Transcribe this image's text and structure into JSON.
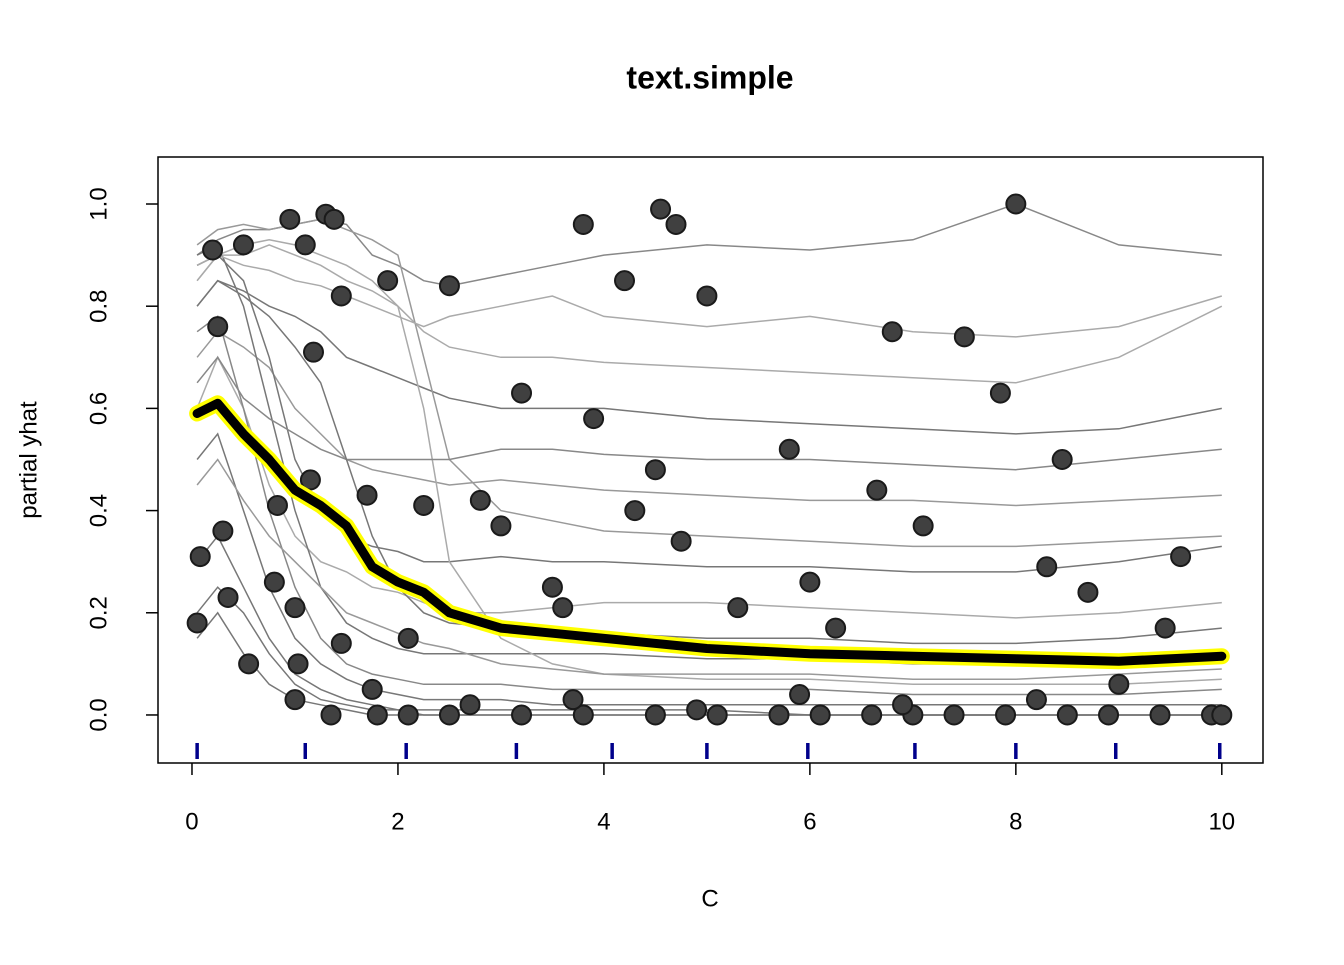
{
  "chart_data": {
    "type": "ice",
    "title": "text.simple",
    "x_label": "C",
    "y_label": "partial yhat",
    "xlim": [
      -0.33,
      10.4
    ],
    "ylim": [
      -0.094,
      1.092
    ],
    "xticks": [
      0,
      2,
      4,
      6,
      8,
      10
    ],
    "yticks": [
      {
        "value": 0,
        "label": "0.0"
      },
      0.2,
      0.4,
      0.6,
      0.8,
      {
        "value": 1,
        "label": "1.0"
      }
    ],
    "x": [
      0.05,
      0.25,
      0.5,
      0.75,
      1,
      1.25,
      1.5,
      1.75,
      2,
      2.25,
      2.5,
      3,
      3.5,
      4,
      5,
      6,
      7,
      8,
      9,
      10
    ],
    "series": [
      {
        "color": "#888888",
        "values": [
          0.9,
          0.93,
          0.95,
          0.95,
          0.96,
          0.97,
          0.96,
          0.9,
          0.88,
          0.85,
          0.84,
          0.86,
          0.88,
          0.9,
          0.92,
          0.91,
          0.93,
          1.0,
          0.92,
          0.9
        ]
      },
      {
        "color": "#aaaaaa",
        "values": [
          0.85,
          0.9,
          0.92,
          0.93,
          0.92,
          0.9,
          0.88,
          0.85,
          0.8,
          0.75,
          0.72,
          0.7,
          0.7,
          0.69,
          0.68,
          0.67,
          0.66,
          0.65,
          0.7,
          0.8
        ]
      },
      {
        "color": "#777777",
        "values": [
          0.8,
          0.85,
          0.83,
          0.8,
          0.78,
          0.75,
          0.7,
          0.68,
          0.66,
          0.64,
          0.62,
          0.6,
          0.6,
          0.6,
          0.58,
          0.57,
          0.56,
          0.55,
          0.56,
          0.6
        ]
      },
      {
        "color": "#999999",
        "values": [
          0.7,
          0.75,
          0.72,
          0.68,
          0.6,
          0.55,
          0.5,
          0.48,
          0.47,
          0.46,
          0.45,
          0.46,
          0.45,
          0.44,
          0.43,
          0.42,
          0.42,
          0.41,
          0.42,
          0.43
        ]
      },
      {
        "color": "#777777",
        "values": [
          0.88,
          0.9,
          0.85,
          0.7,
          0.5,
          0.4,
          0.35,
          0.33,
          0.32,
          0.3,
          0.3,
          0.31,
          0.3,
          0.3,
          0.29,
          0.29,
          0.28,
          0.28,
          0.3,
          0.33
        ]
      },
      {
        "color": "#aaaaaa",
        "values": [
          0.6,
          0.7,
          0.6,
          0.45,
          0.35,
          0.3,
          0.28,
          0.25,
          0.24,
          0.22,
          0.2,
          0.2,
          0.21,
          0.22,
          0.22,
          0.21,
          0.2,
          0.19,
          0.2,
          0.22
        ]
      },
      {
        "color": "#777777",
        "values": [
          0.9,
          0.92,
          0.8,
          0.6,
          0.4,
          0.25,
          0.18,
          0.15,
          0.13,
          0.12,
          0.12,
          0.12,
          0.12,
          0.12,
          0.11,
          0.11,
          0.1,
          0.1,
          0.1,
          0.12
        ]
      },
      {
        "color": "#888888",
        "values": [
          0.75,
          0.78,
          0.6,
          0.4,
          0.25,
          0.15,
          0.1,
          0.08,
          0.07,
          0.06,
          0.06,
          0.06,
          0.05,
          0.05,
          0.05,
          0.05,
          0.04,
          0.04,
          0.04,
          0.05
        ]
      },
      {
        "color": "#777777",
        "values": [
          0.5,
          0.55,
          0.4,
          0.25,
          0.15,
          0.1,
          0.07,
          0.05,
          0.04,
          0.03,
          0.03,
          0.03,
          0.02,
          0.02,
          0.02,
          0.02,
          0.02,
          0.02,
          0.02,
          0.02
        ]
      },
      {
        "color": "#777777",
        "values": [
          0.3,
          0.35,
          0.25,
          0.15,
          0.08,
          0.05,
          0.03,
          0.02,
          0.01,
          0.01,
          0.01,
          0.01,
          0.01,
          0.01,
          0.01,
          0,
          0,
          0,
          0,
          0
        ]
      },
      {
        "color": "#999999",
        "values": [
          0.92,
          0.95,
          0.96,
          0.95,
          0.96,
          0.97,
          0.95,
          0.93,
          0.9,
          0.7,
          0.5,
          0.4,
          0.38,
          0.36,
          0.35,
          0.34,
          0.33,
          0.33,
          0.34,
          0.35
        ]
      },
      {
        "color": "#aaaaaa",
        "values": [
          0.88,
          0.9,
          0.9,
          0.92,
          0.9,
          0.88,
          0.85,
          0.83,
          0.8,
          0.6,
          0.3,
          0.15,
          0.1,
          0.08,
          0.07,
          0.07,
          0.06,
          0.06,
          0.06,
          0.07
        ]
      },
      {
        "color": "#777777",
        "values": [
          0.2,
          0.25,
          0.2,
          0.12,
          0.06,
          0.03,
          0.02,
          0.01,
          0.01,
          0,
          0,
          0,
          0,
          0,
          0,
          0,
          0,
          0,
          0,
          0
        ]
      },
      {
        "color": "#777777",
        "values": [
          0.15,
          0.2,
          0.12,
          0.06,
          0.03,
          0.02,
          0.01,
          0,
          0,
          0,
          0,
          0,
          0,
          0,
          0,
          0,
          0,
          0,
          0,
          0
        ]
      },
      {
        "color": "#aaaaaa",
        "values": [
          0.85,
          0.9,
          0.88,
          0.87,
          0.85,
          0.84,
          0.82,
          0.8,
          0.78,
          0.76,
          0.78,
          0.8,
          0.82,
          0.78,
          0.76,
          0.78,
          0.75,
          0.74,
          0.76,
          0.82
        ]
      },
      {
        "color": "#888888",
        "values": [
          0.65,
          0.7,
          0.62,
          0.58,
          0.55,
          0.52,
          0.5,
          0.5,
          0.5,
          0.5,
          0.5,
          0.52,
          0.52,
          0.51,
          0.5,
          0.5,
          0.49,
          0.48,
          0.5,
          0.52
        ]
      },
      {
        "color": "#777777",
        "values": [
          0.8,
          0.85,
          0.82,
          0.78,
          0.72,
          0.65,
          0.5,
          0.35,
          0.25,
          0.2,
          0.18,
          0.17,
          0.16,
          0.16,
          0.15,
          0.15,
          0.14,
          0.14,
          0.15,
          0.17
        ]
      },
      {
        "color": "#999999",
        "values": [
          0.45,
          0.5,
          0.42,
          0.35,
          0.3,
          0.25,
          0.2,
          0.18,
          0.16,
          0.14,
          0.13,
          0.1,
          0.09,
          0.08,
          0.08,
          0.08,
          0.07,
          0.07,
          0.08,
          0.09
        ]
      }
    ],
    "pdp": {
      "color": "#000000",
      "outline": "#ffff00",
      "values": [
        0.59,
        0.61,
        0.55,
        0.5,
        0.44,
        0.41,
        0.37,
        0.29,
        0.26,
        0.24,
        0.2,
        0.17,
        0.16,
        0.15,
        0.13,
        0.12,
        0.115,
        0.11,
        0.105,
        0.115
      ]
    },
    "points": {
      "color": "#404040",
      "x": [
        0.05,
        0.08,
        0.2,
        0.25,
        0.3,
        0.35,
        0.5,
        0.55,
        0.8,
        0.83,
        0.95,
        1.0,
        1.03,
        1.0,
        1.1,
        1.15,
        1.18,
        1.3,
        1.38,
        1.45,
        1.45,
        1.7,
        1.75,
        1.9,
        2.1,
        2.25,
        2.5,
        2.8,
        3.0,
        3.2,
        3.5,
        3.6,
        3.8,
        3.9,
        4.2,
        4.3,
        4.5,
        4.55,
        4.7,
        4.75,
        5.0,
        5.3,
        5.8,
        6.0,
        6.25,
        6.65,
        6.8,
        7.1,
        7.5,
        7.85,
        8.0,
        8.3,
        8.45,
        8.7,
        9.6,
        9.45,
        1.35,
        1.8,
        2.1,
        2.5,
        3.2,
        3.8,
        4.5,
        5.1,
        5.7,
        6.1,
        6.6,
        7.0,
        7.4,
        7.9,
        8.5,
        8.9,
        9.4,
        9.9,
        10.0,
        5.9,
        9.0,
        3.7,
        2.7,
        4.9,
        6.9,
        8.2
      ],
      "y": [
        0.18,
        0.31,
        0.91,
        0.76,
        0.36,
        0.23,
        0.92,
        0.1,
        0.26,
        0.41,
        0.97,
        0.21,
        0.1,
        0.03,
        0.92,
        0.46,
        0.71,
        0.98,
        0.97,
        0.82,
        0.14,
        0.43,
        0.05,
        0.85,
        0.15,
        0.41,
        0.84,
        0.42,
        0.37,
        0.63,
        0.25,
        0.21,
        0.96,
        0.58,
        0.85,
        0.4,
        0.48,
        0.99,
        0.96,
        0.34,
        0.82,
        0.21,
        0.52,
        0.26,
        0.17,
        0.44,
        0.75,
        0.37,
        0.74,
        0.63,
        1.0,
        0.29,
        0.5,
        0.24,
        0.31,
        0.17,
        0,
        0,
        0,
        0,
        0,
        0,
        0,
        0,
        0,
        0,
        0,
        0,
        0,
        0,
        0,
        0,
        0,
        0,
        0,
        0.04,
        0.06,
        0.03,
        0.02,
        0.01,
        0.02,
        0.03
      ]
    },
    "rug": {
      "color": "#00008b",
      "x": [
        0.05,
        1.1,
        2.08,
        3.15,
        4.08,
        5.0,
        5.98,
        7.02,
        8.0,
        8.97,
        9.98
      ]
    }
  }
}
